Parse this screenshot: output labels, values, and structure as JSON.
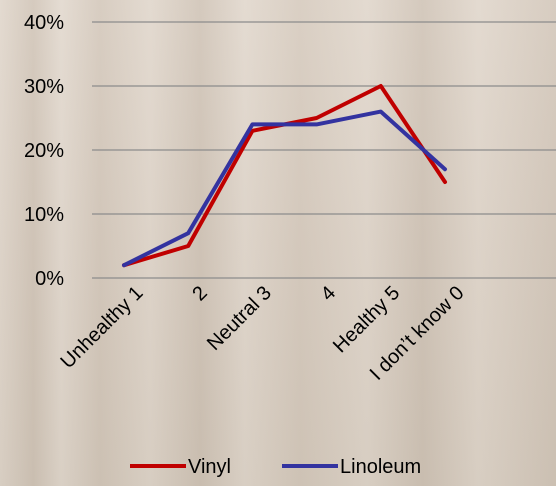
{
  "chart_data": {
    "type": "line",
    "categories": [
      "Unhealthy 1",
      "2",
      "Neutral 3",
      "4",
      "Healthy 5",
      "I don’t know 0"
    ],
    "series": [
      {
        "name": "Vinyl",
        "values": [
          2,
          5,
          23,
          25,
          30,
          15
        ],
        "color": "#c00000"
      },
      {
        "name": "Linoleum",
        "values": [
          2,
          7,
          24,
          24,
          26,
          17
        ],
        "color": "#3333a0"
      }
    ],
    "y_ticks": [
      "0%",
      "10%",
      "20%",
      "30%",
      "40%"
    ],
    "ylim": [
      0,
      40
    ],
    "grid": true,
    "legend_position": "bottom"
  }
}
